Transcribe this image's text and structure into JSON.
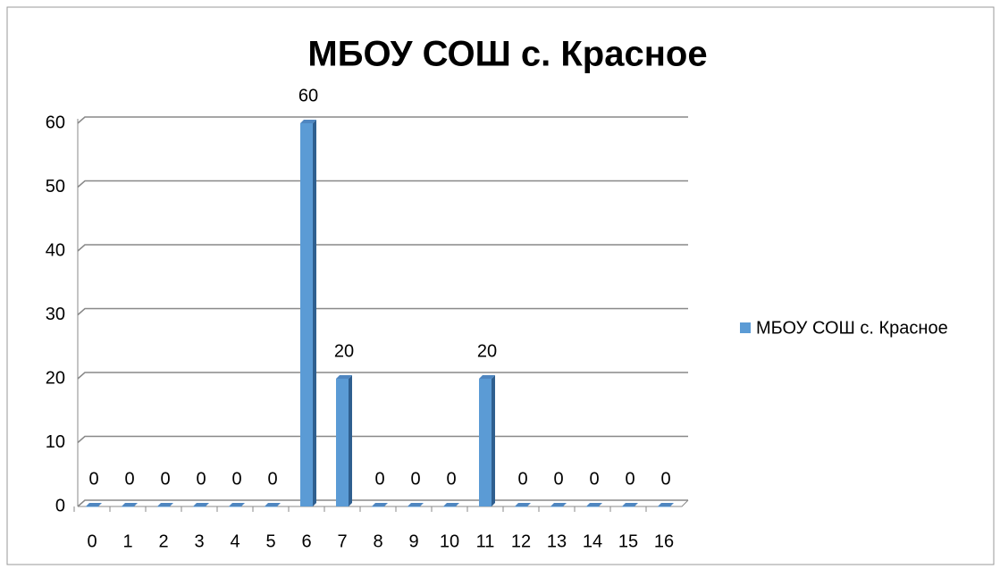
{
  "chart_data": {
    "type": "bar",
    "title": "МБОУ СОШ с. Красное",
    "categories": [
      "0",
      "1",
      "2",
      "3",
      "4",
      "5",
      "6",
      "7",
      "8",
      "9",
      "10",
      "11",
      "12",
      "13",
      "14",
      "15",
      "16"
    ],
    "series": [
      {
        "name": "МБОУ СОШ с. Красное",
        "color": "#5b9bd5",
        "values": [
          0,
          0,
          0,
          0,
          0,
          0,
          60,
          20,
          0,
          0,
          0,
          20,
          0,
          0,
          0,
          0,
          0
        ]
      }
    ],
    "ylim": [
      0,
      60
    ],
    "yticks": [
      0,
      10,
      20,
      30,
      40,
      50,
      60
    ],
    "grid": true,
    "legend": "right",
    "data_labels": true
  }
}
